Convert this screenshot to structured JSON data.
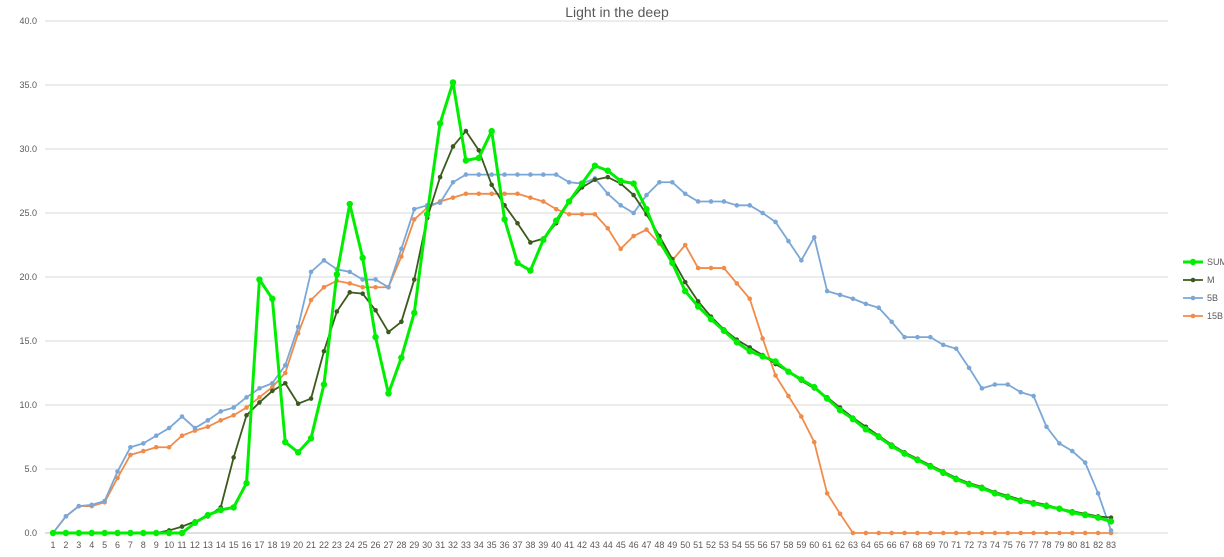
{
  "chart_data": {
    "type": "line",
    "title": "Light in the deep",
    "xlabel": "",
    "ylabel": "",
    "ylim": [
      0,
      40
    ],
    "yticks": [
      "0.0",
      "5.0",
      "10.0",
      "15.0",
      "20.0",
      "25.0",
      "30.0",
      "35.0",
      "40.0"
    ],
    "grid": true,
    "legend_position": "right",
    "categories": [
      1,
      2,
      3,
      4,
      5,
      6,
      7,
      8,
      9,
      10,
      11,
      12,
      13,
      14,
      15,
      16,
      17,
      18,
      19,
      20,
      21,
      22,
      23,
      24,
      25,
      26,
      27,
      28,
      29,
      30,
      31,
      32,
      33,
      34,
      35,
      36,
      37,
      38,
      39,
      40,
      41,
      42,
      43,
      44,
      45,
      46,
      47,
      48,
      49,
      50,
      51,
      52,
      53,
      54,
      55,
      56,
      57,
      58,
      59,
      60,
      61,
      62,
      63,
      64,
      65,
      66,
      67,
      68,
      69,
      70,
      71,
      72,
      73,
      74,
      75,
      76,
      77,
      78,
      79,
      80,
      81,
      82,
      83
    ],
    "series": [
      {
        "name": "SUM",
        "color": "#00ee00",
        "values": [
          0.0,
          0.0,
          0.0,
          0.0,
          0.0,
          0.0,
          0.0,
          0.0,
          0.0,
          0.0,
          0.0,
          0.8,
          1.4,
          1.8,
          2.0,
          3.9,
          19.8,
          18.3,
          7.1,
          6.3,
          7.4,
          11.6,
          20.2,
          25.7,
          21.5,
          15.3,
          10.9,
          13.7,
          17.2,
          24.9,
          32.0,
          35.2,
          29.1,
          29.3,
          31.4,
          24.5,
          21.1,
          20.5,
          22.9,
          24.4,
          25.9,
          27.3,
          28.7,
          28.3,
          27.5,
          27.3,
          25.3,
          22.8,
          21.1,
          18.9,
          17.7,
          16.7,
          15.8,
          14.9,
          14.2,
          13.8,
          13.4,
          12.6,
          12.0,
          11.4,
          10.5,
          9.6,
          8.9,
          8.1,
          7.5,
          6.8,
          6.2,
          5.7,
          5.2,
          4.7,
          4.2,
          3.8,
          3.5,
          3.1,
          2.8,
          2.5,
          2.3,
          2.1,
          1.9,
          1.6,
          1.4,
          1.2,
          0.9
        ]
      },
      {
        "name": "M",
        "color": "#3a5a1e",
        "values": [
          0.0,
          0.0,
          0.0,
          0.0,
          0.0,
          0.0,
          0.0,
          0.0,
          0.0,
          0.2,
          0.5,
          0.9,
          1.3,
          2.0,
          5.9,
          9.2,
          10.2,
          11.1,
          11.7,
          10.1,
          10.5,
          14.2,
          17.3,
          18.8,
          18.7,
          17.4,
          15.7,
          16.5,
          19.8,
          24.6,
          27.8,
          30.2,
          31.4,
          29.9,
          27.2,
          25.6,
          24.2,
          22.7,
          23.0,
          24.2,
          25.9,
          27.0,
          27.6,
          27.8,
          27.3,
          26.4,
          24.9,
          23.2,
          21.4,
          19.6,
          18.1,
          16.9,
          15.9,
          15.1,
          14.5,
          13.9,
          13.2,
          12.6,
          11.9,
          11.3,
          10.6,
          9.8,
          9.0,
          8.3,
          7.6,
          6.9,
          6.3,
          5.8,
          5.3,
          4.8,
          4.3,
          3.9,
          3.6,
          3.2,
          2.9,
          2.6,
          2.4,
          2.2,
          1.9,
          1.7,
          1.5,
          1.3,
          1.2
        ]
      },
      {
        "name": "5B",
        "color": "#7ba7d7",
        "values": [
          0.0,
          1.3,
          2.1,
          2.2,
          2.5,
          4.8,
          6.7,
          7.0,
          7.6,
          8.2,
          9.1,
          8.2,
          8.8,
          9.5,
          9.8,
          10.6,
          11.3,
          11.7,
          13.1,
          16.1,
          20.4,
          21.3,
          20.6,
          20.4,
          19.8,
          19.8,
          19.2,
          22.2,
          25.3,
          25.6,
          25.8,
          27.4,
          28.0,
          28.0,
          28.0,
          28.0,
          28.0,
          28.0,
          28.0,
          28.0,
          27.4,
          27.3,
          27.7,
          26.5,
          25.6,
          25.0,
          26.4,
          27.4,
          27.4,
          26.5,
          25.9,
          25.9,
          25.9,
          25.6,
          25.6,
          25.0,
          24.3,
          22.8,
          21.3,
          23.1,
          18.9,
          18.6,
          18.3,
          17.9,
          17.6,
          16.5,
          15.3,
          15.3,
          15.3,
          14.7,
          14.4,
          12.9,
          11.3,
          11.6,
          11.6,
          11.0,
          10.7,
          8.3,
          7.0,
          6.4,
          5.5,
          3.1,
          0.2
        ]
      },
      {
        "name": "15B",
        "color": "#f08c4a",
        "values": [
          0.0,
          1.3,
          2.1,
          2.1,
          2.4,
          4.3,
          6.1,
          6.4,
          6.7,
          6.7,
          7.6,
          8.0,
          8.3,
          8.8,
          9.2,
          9.8,
          10.6,
          11.4,
          12.5,
          15.6,
          18.2,
          19.2,
          19.7,
          19.5,
          19.2,
          19.2,
          19.2,
          21.6,
          24.5,
          25.4,
          25.9,
          26.2,
          26.5,
          26.5,
          26.5,
          26.5,
          26.5,
          26.2,
          25.9,
          25.3,
          24.9,
          24.9,
          24.9,
          23.8,
          22.2,
          23.2,
          23.7,
          22.6,
          21.3,
          22.5,
          20.7,
          20.7,
          20.7,
          19.5,
          18.3,
          15.2,
          12.3,
          10.7,
          9.1,
          7.1,
          3.1,
          1.5,
          0.0,
          0.0,
          0.0,
          0.0,
          0.0,
          0.0,
          0.0,
          0.0,
          0.0,
          0.0,
          0.0,
          0.0,
          0.0,
          0.0,
          0.0,
          0.0,
          0.0,
          0.0,
          0.0,
          0.0,
          0.0
        ]
      }
    ]
  }
}
